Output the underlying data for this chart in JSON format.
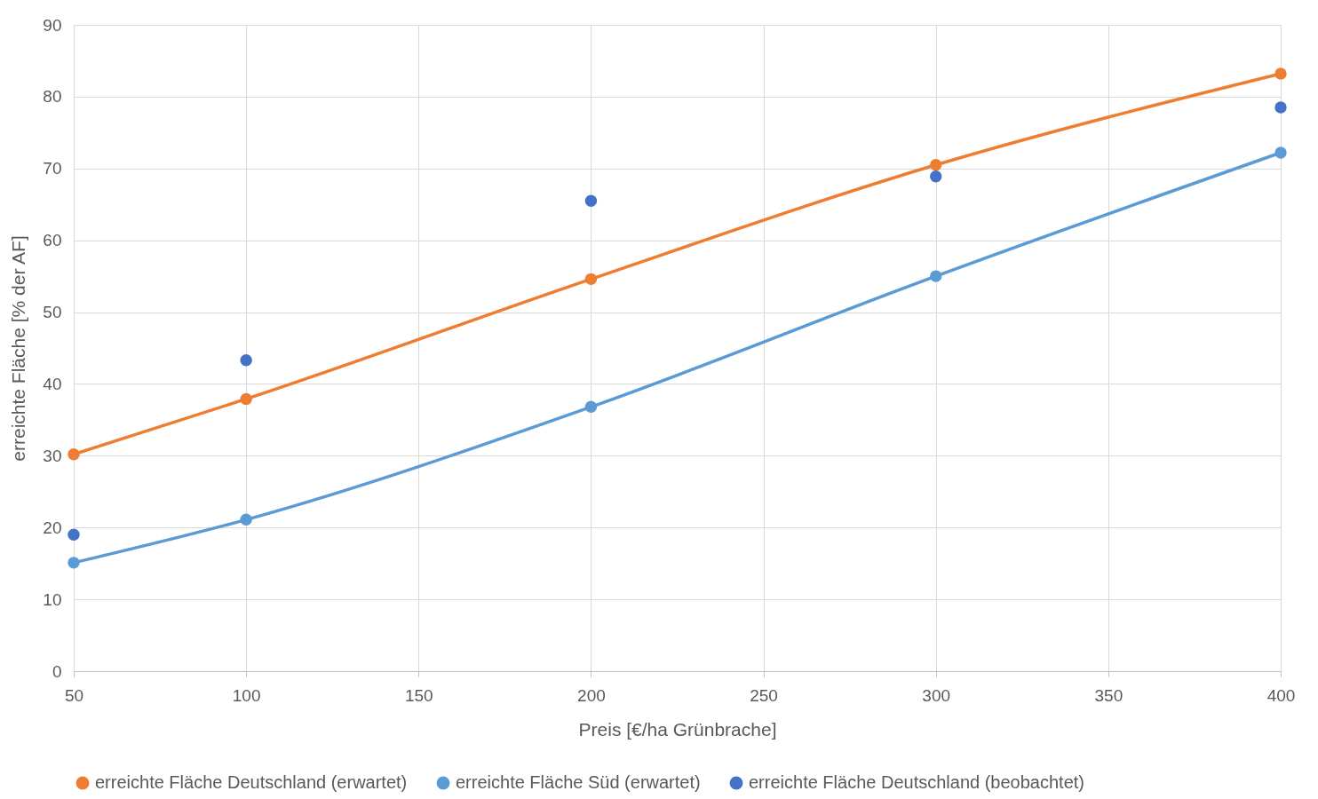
{
  "chart_data": {
    "type": "line",
    "xlabel": "Preis [€/ha Grünbrache]",
    "ylabel": "erreichte Fläche [% der AF]",
    "x": [
      50,
      100,
      200,
      300,
      400
    ],
    "series": [
      {
        "name": "erreichte Fläche Deutschland (erwartet)",
        "color": "#ed7d31",
        "values": [
          30.2,
          37.9,
          54.6,
          70.5,
          83.2
        ]
      },
      {
        "name": "erreichte Fläche Süd (erwartet)",
        "color": "#5b9bd5",
        "values": [
          15.1,
          21.1,
          36.8,
          55.0,
          72.2
        ]
      },
      {
        "name": "erreichte Fläche Deutschland (beobachtet)",
        "color": "#4472c4",
        "type": "scatter",
        "values": [
          19.0,
          43.3,
          65.5,
          68.9,
          78.5
        ]
      }
    ],
    "xlim": [
      50,
      400
    ],
    "xticks": [
      50,
      100,
      150,
      200,
      250,
      300,
      350,
      400
    ],
    "ylim": [
      0,
      90
    ],
    "yticks": [
      0,
      10,
      20,
      30,
      40,
      50,
      60,
      70,
      80,
      90
    ],
    "grid": true,
    "legend": "bottom",
    "marker": "circle",
    "line_style": "solid"
  }
}
